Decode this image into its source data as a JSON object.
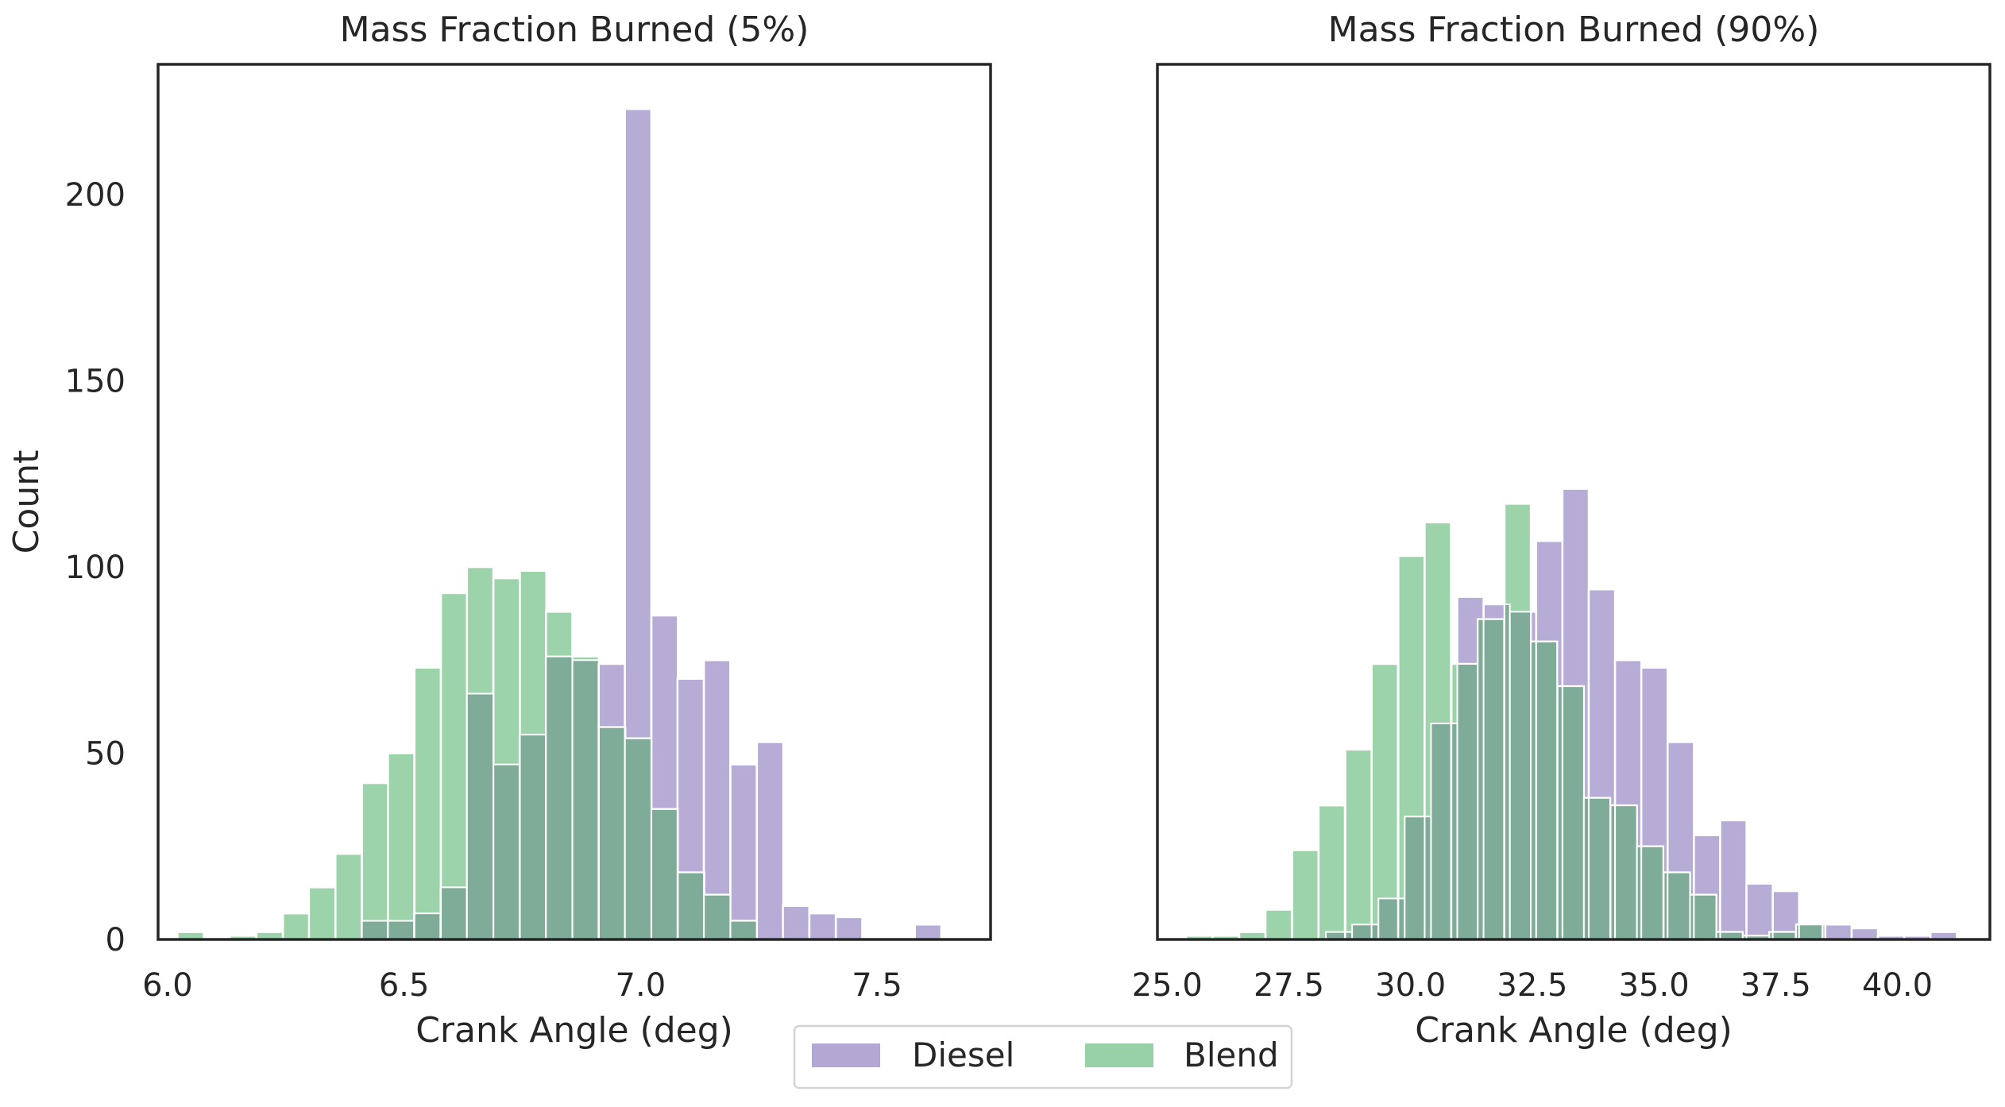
{
  "figure": {
    "ylabel": "Count",
    "legend": {
      "placement": "bottom-center",
      "entries": [
        {
          "name": "Diesel",
          "color": "#b3a8d3"
        },
        {
          "name": "Blend",
          "color": "#98d1a7"
        }
      ]
    }
  },
  "chart_data": [
    {
      "type": "histogram",
      "title": "Mass Fraction Burned (5%)",
      "xlabel": "Crank Angle (deg)",
      "ylabel": "Count",
      "xlim": [
        5.98,
        7.74
      ],
      "ylim": [
        0,
        235
      ],
      "xticks": [
        6.0,
        6.5,
        7.0,
        7.5
      ],
      "xtick_labels": [
        "6.0",
        "6.5",
        "7.0",
        "7.5"
      ],
      "yticks": [
        0,
        50,
        100,
        150,
        200
      ],
      "ytick_labels": [
        "0",
        "50",
        "100",
        "150",
        "200"
      ],
      "series": [
        {
          "name": "Diesel",
          "color": "#b3a8d3",
          "bin_width": 0.0557,
          "bin_starts": [
            6.41,
            6.466,
            6.521,
            6.577,
            6.633,
            6.689,
            6.744,
            6.8,
            6.856,
            6.911,
            6.967,
            7.023,
            7.078,
            7.134,
            7.19,
            7.246,
            7.301,
            7.357,
            7.413,
            7.469,
            7.524,
            7.58
          ],
          "values": [
            5,
            5,
            7,
            14,
            66,
            47,
            55,
            76,
            75,
            74,
            223,
            87,
            70,
            75,
            47,
            53,
            9,
            7,
            6,
            0,
            0,
            4
          ]
        },
        {
          "name": "Blend",
          "color": "#98d1a7",
          "bin_width": 0.0557,
          "bin_starts": [
            6.021,
            6.077,
            6.132,
            6.188,
            6.244,
            6.299,
            6.355,
            6.411,
            6.466,
            6.522,
            6.578,
            6.633,
            6.689,
            6.745,
            6.8,
            6.856,
            6.912,
            6.967,
            7.023,
            7.079,
            7.134,
            7.19
          ],
          "values": [
            2,
            0,
            1,
            2,
            7,
            14,
            23,
            42,
            50,
            73,
            93,
            100,
            97,
            99,
            88,
            76,
            57,
            54,
            35,
            18,
            12,
            5
          ]
        }
      ]
    },
    {
      "type": "histogram",
      "title": "Mass Fraction Burned (90%)",
      "xlabel": "Crank Angle (deg)",
      "ylim": [
        0,
        235
      ],
      "xlim": [
        24.8,
        41.9
      ],
      "xticks": [
        25.0,
        27.5,
        30.0,
        32.5,
        35.0,
        37.5,
        40.0
      ],
      "xtick_labels": [
        "25.0",
        "27.5",
        "30.0",
        "32.5",
        "35.0",
        "37.5",
        "40.0"
      ],
      "series": [
        {
          "name": "Diesel",
          "color": "#b3a8d3",
          "bin_width": 0.54,
          "bin_starts": [
            28.26,
            28.8,
            29.34,
            29.88,
            30.42,
            30.96,
            31.5,
            32.04,
            32.58,
            33.12,
            33.66,
            34.2,
            34.74,
            35.28,
            35.82,
            36.36,
            36.9,
            37.44,
            37.98,
            38.52,
            39.06,
            39.6,
            40.14,
            40.68
          ],
          "values": [
            2,
            4,
            11,
            33,
            58,
            92,
            90,
            88,
            107,
            121,
            94,
            75,
            73,
            53,
            28,
            32,
            15,
            13,
            4,
            4,
            3,
            1,
            1,
            2
          ]
        },
        {
          "name": "Blend",
          "color": "#98d1a7",
          "bin_width": 0.54,
          "bin_starts": [
            25.39,
            25.94,
            26.48,
            27.02,
            27.57,
            28.11,
            28.66,
            29.2,
            29.75,
            30.29,
            30.84,
            31.38,
            31.93,
            32.47,
            33.02,
            33.56,
            34.11,
            34.65,
            35.2,
            35.74,
            36.28,
            36.83,
            37.37,
            37.92,
            38.46
          ],
          "values": [
            1,
            1,
            2,
            8,
            24,
            36,
            51,
            74,
            103,
            112,
            74,
            86,
            117,
            80,
            68,
            38,
            36,
            25,
            18,
            12,
            2,
            1,
            2,
            4,
            0
          ]
        }
      ]
    }
  ]
}
